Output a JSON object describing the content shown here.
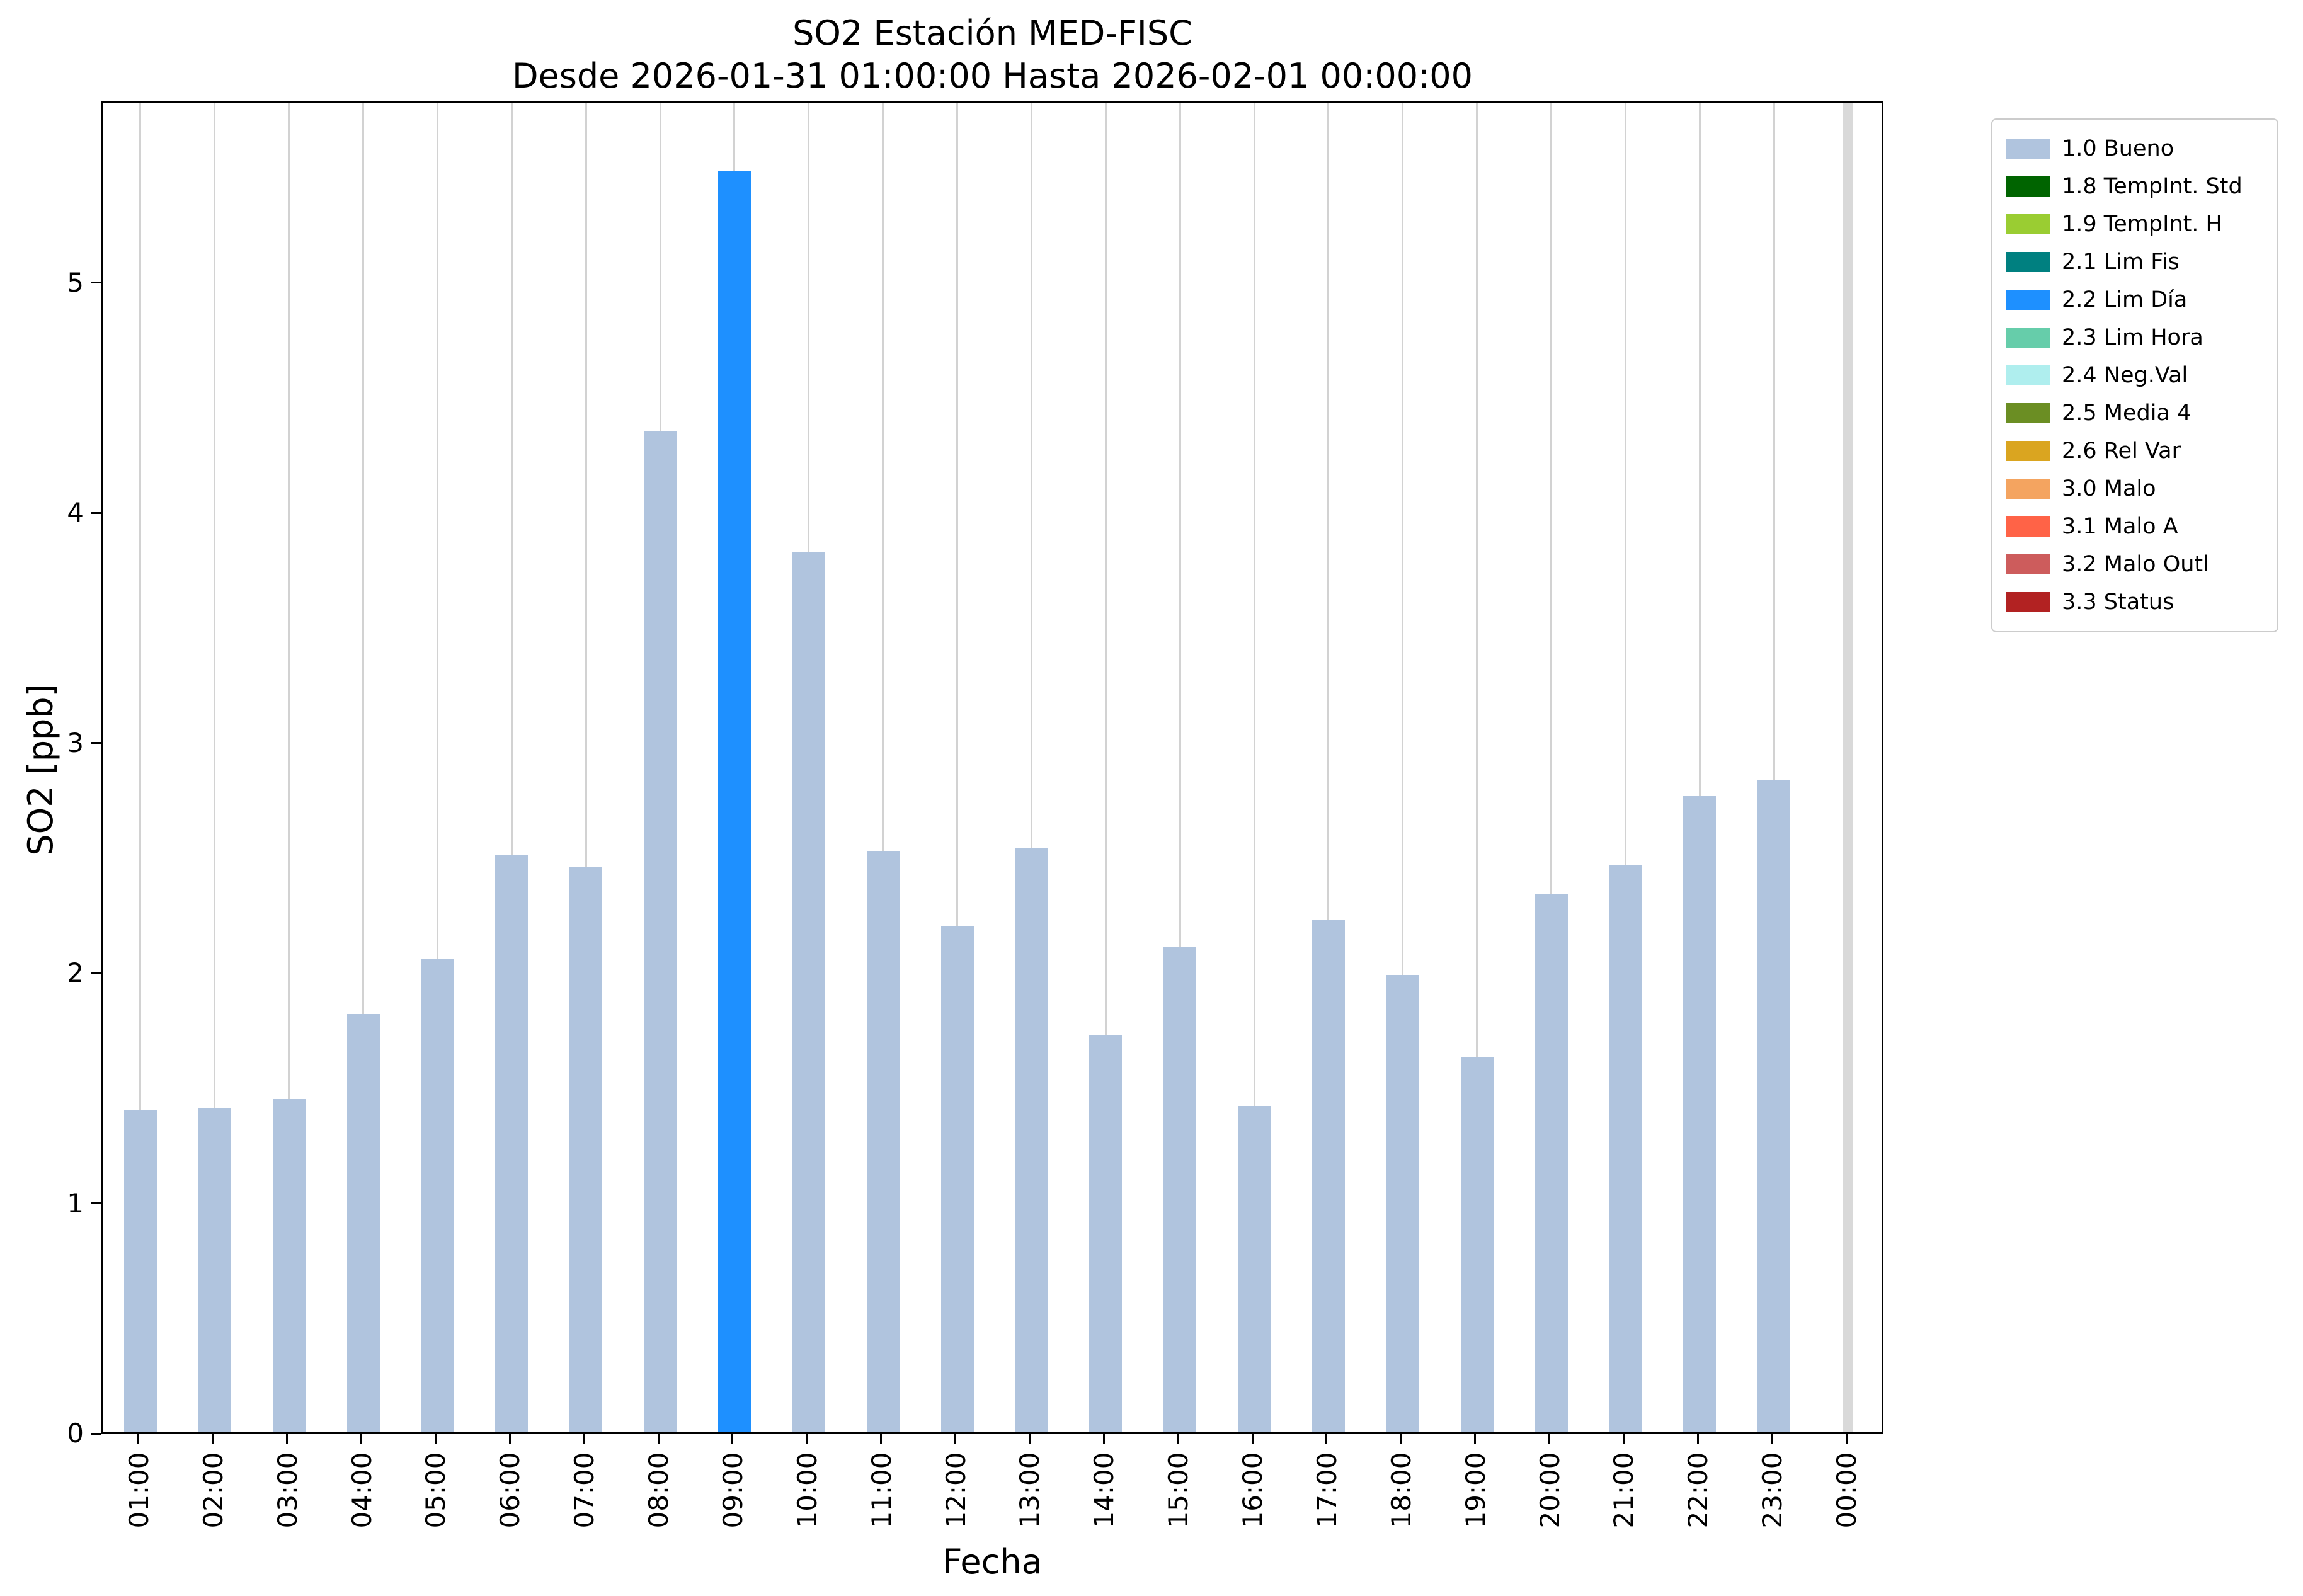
{
  "chart_data": {
    "type": "bar",
    "title": "SO2 Estación MED-FISC",
    "subtitle": "Desde 2026-01-31 01:00:00 Hasta 2026-02-01 00:00:00",
    "xlabel": "Fecha",
    "ylabel": "SO2 [ppb]",
    "ylim": [
      0,
      5.79
    ],
    "yticks": [
      0,
      1,
      2,
      3,
      4,
      5
    ],
    "grid": "vertical",
    "legend_position": "outside-upper-right",
    "categories": [
      "01:00",
      "02:00",
      "03:00",
      "04:00",
      "05:00",
      "06:00",
      "07:00",
      "08:00",
      "09:00",
      "10:00",
      "11:00",
      "12:00",
      "13:00",
      "14:00",
      "15:00",
      "16:00",
      "17:00",
      "18:00",
      "19:00",
      "20:00",
      "21:00",
      "22:00",
      "23:00",
      "00:00"
    ],
    "bars": [
      {
        "time": "01:00",
        "value": 1.4,
        "status": "1.0 Bueno"
      },
      {
        "time": "02:00",
        "value": 1.41,
        "status": "1.0 Bueno"
      },
      {
        "time": "03:00",
        "value": 1.45,
        "status": "1.0 Bueno"
      },
      {
        "time": "04:00",
        "value": 1.82,
        "status": "1.0 Bueno"
      },
      {
        "time": "05:00",
        "value": 2.06,
        "status": "1.0 Bueno"
      },
      {
        "time": "06:00",
        "value": 2.51,
        "status": "1.0 Bueno"
      },
      {
        "time": "07:00",
        "value": 2.46,
        "status": "1.0 Bueno"
      },
      {
        "time": "08:00",
        "value": 4.36,
        "status": "1.0 Bueno"
      },
      {
        "time": "09:00",
        "value": 5.49,
        "status": "2.2 Lim Día"
      },
      {
        "time": "10:00",
        "value": 3.83,
        "status": "1.0 Bueno"
      },
      {
        "time": "11:00",
        "value": 2.53,
        "status": "1.0 Bueno"
      },
      {
        "time": "12:00",
        "value": 2.2,
        "status": "1.0 Bueno"
      },
      {
        "time": "13:00",
        "value": 2.54,
        "status": "1.0 Bueno"
      },
      {
        "time": "14:00",
        "value": 1.73,
        "status": "1.0 Bueno"
      },
      {
        "time": "15:00",
        "value": 2.11,
        "status": "1.0 Bueno"
      },
      {
        "time": "16:00",
        "value": 1.42,
        "status": "1.0 Bueno"
      },
      {
        "time": "17:00",
        "value": 2.23,
        "status": "1.0 Bueno"
      },
      {
        "time": "18:00",
        "value": 1.99,
        "status": "1.0 Bueno"
      },
      {
        "time": "19:00",
        "value": 1.63,
        "status": "1.0 Bueno"
      },
      {
        "time": "20:00",
        "value": 2.34,
        "status": "1.0 Bueno"
      },
      {
        "time": "21:00",
        "value": 2.47,
        "status": "1.0 Bueno"
      },
      {
        "time": "22:00",
        "value": 2.77,
        "status": "1.0 Bueno"
      },
      {
        "time": "23:00",
        "value": 2.84,
        "status": "1.0 Bueno"
      },
      {
        "time": "00:00",
        "value": null,
        "status": "no-data"
      }
    ],
    "legend": [
      {
        "label": "1.0 Bueno",
        "color": "#b0c4de"
      },
      {
        "label": "1.8 TempInt. Std",
        "color": "#006400"
      },
      {
        "label": "1.9 TempInt. H",
        "color": "#9acd32"
      },
      {
        "label": "2.1 Lim Fis",
        "color": "#008080"
      },
      {
        "label": "2.2 Lim Día",
        "color": "#1e90ff"
      },
      {
        "label": "2.3 Lim Hora",
        "color": "#66cdaa"
      },
      {
        "label": "2.4 Neg.Val",
        "color": "#afeeee"
      },
      {
        "label": "2.5 Media 4",
        "color": "#6b8e23"
      },
      {
        "label": "2.6 Rel Var",
        "color": "#daa520"
      },
      {
        "label": "3.0 Malo",
        "color": "#f4a460"
      },
      {
        "label": "3.1 Malo A",
        "color": "#ff6347"
      },
      {
        "label": "3.2 Malo Outl",
        "color": "#cd5c5c"
      },
      {
        "label": "3.3 Status",
        "color": "#b22222"
      }
    ],
    "no_data_color": "#d9d9d9"
  }
}
